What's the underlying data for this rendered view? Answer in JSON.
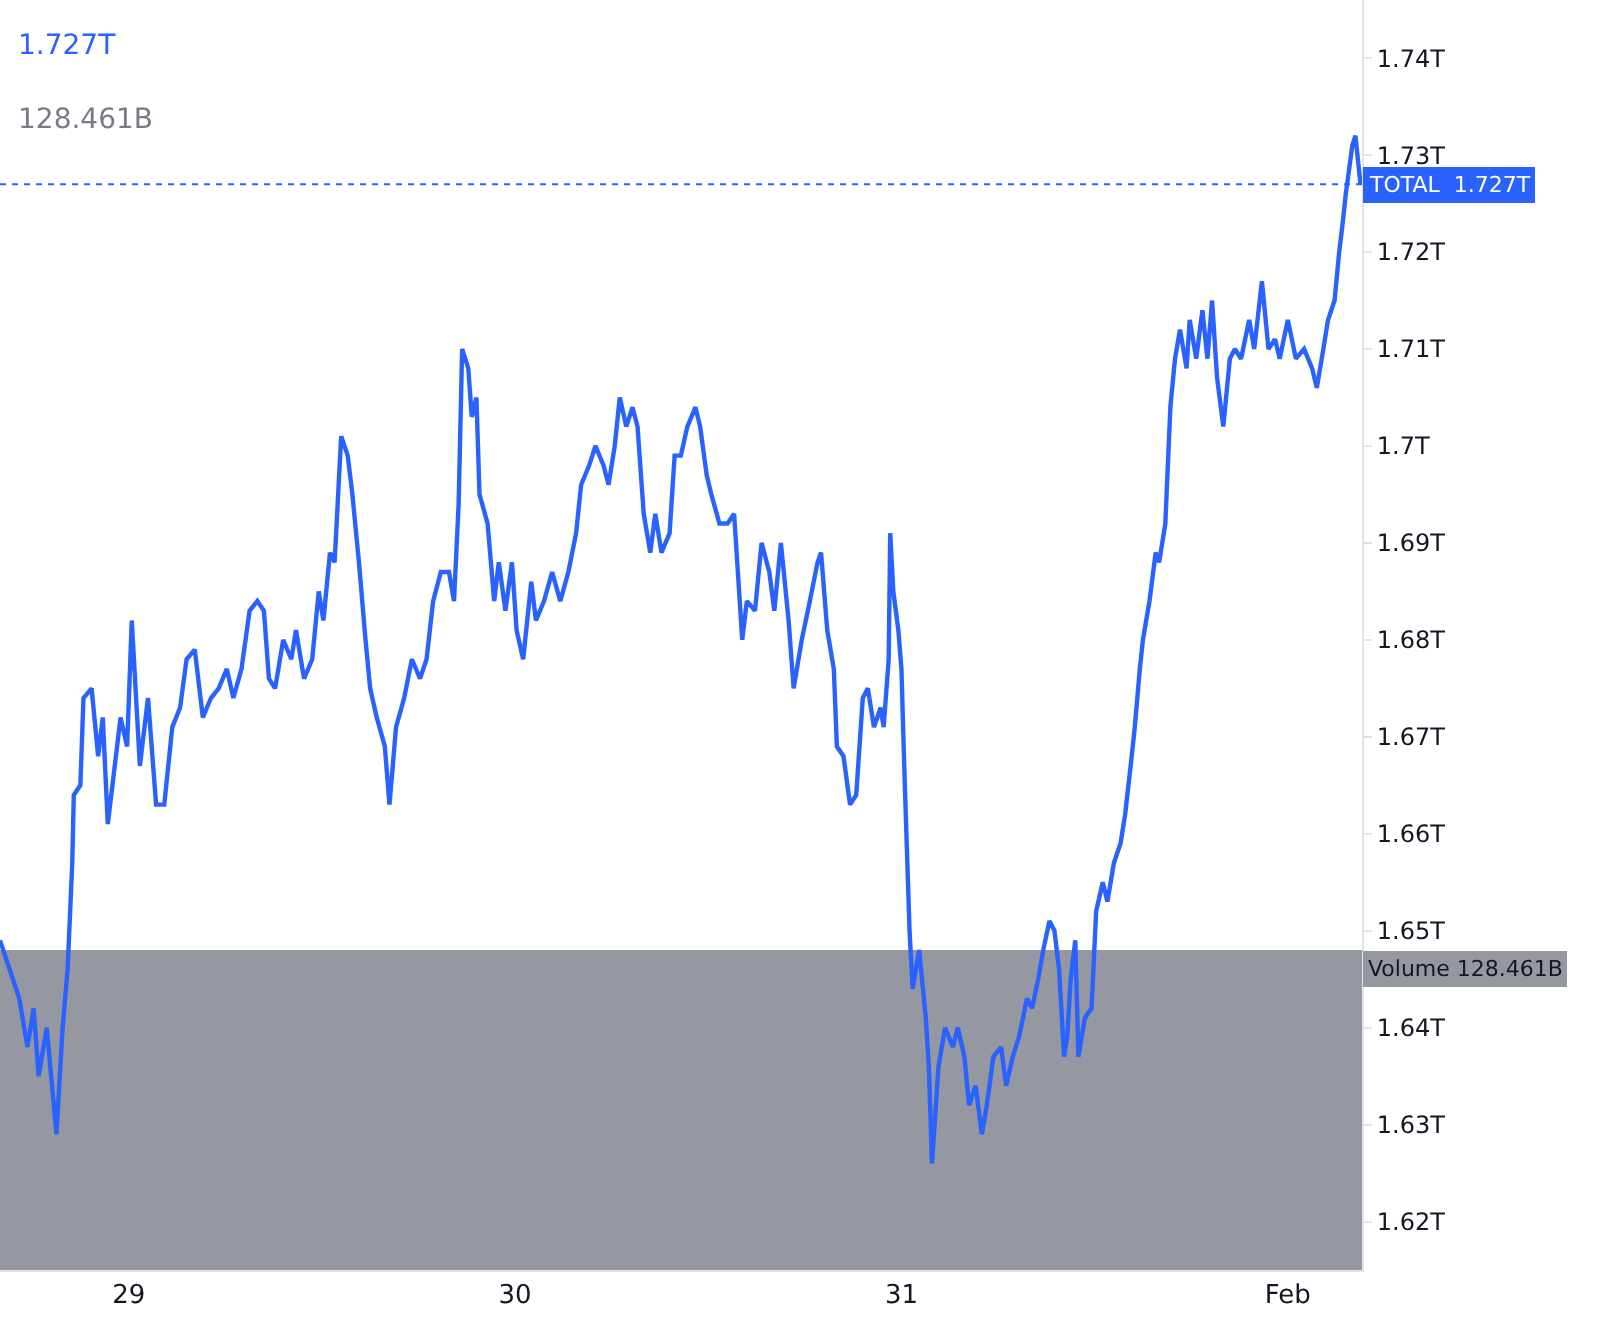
{
  "chart_data": {
    "type": "line",
    "x": [
      28.667,
      28.692,
      28.717,
      28.738,
      28.754,
      28.767,
      28.788,
      28.813,
      28.829,
      28.842,
      28.854,
      28.858,
      28.875,
      28.883,
      28.904,
      28.921,
      28.933,
      28.946,
      28.958,
      28.979,
      28.996,
      29.008,
      29.029,
      29.05,
      29.071,
      29.092,
      29.113,
      29.133,
      29.15,
      29.171,
      29.192,
      29.213,
      29.233,
      29.254,
      29.271,
      29.292,
      29.313,
      29.333,
      29.35,
      29.363,
      29.379,
      29.4,
      29.421,
      29.433,
      29.454,
      29.475,
      29.492,
      29.504,
      29.521,
      29.533,
      29.55,
      29.567,
      29.579,
      29.596,
      29.613,
      29.625,
      29.642,
      29.663,
      29.675,
      29.692,
      29.713,
      29.733,
      29.754,
      29.771,
      29.788,
      29.808,
      29.829,
      29.842,
      29.854,
      29.863,
      29.879,
      29.888,
      29.9,
      29.908,
      29.929,
      29.946,
      29.958,
      29.975,
      29.992,
      30.004,
      30.021,
      30.042,
      30.054,
      30.075,
      30.096,
      30.117,
      30.138,
      30.158,
      30.171,
      30.192,
      30.208,
      30.229,
      30.242,
      30.258,
      30.271,
      30.288,
      30.304,
      30.317,
      30.333,
      30.35,
      30.363,
      30.379,
      30.4,
      30.413,
      30.429,
      30.446,
      30.467,
      30.479,
      30.496,
      30.508,
      30.529,
      30.55,
      30.567,
      30.588,
      30.6,
      30.621,
      30.638,
      30.658,
      30.671,
      30.688,
      30.708,
      30.721,
      30.742,
      30.763,
      30.783,
      30.792,
      30.808,
      30.825,
      30.833,
      30.85,
      30.867,
      30.883,
      30.9,
      30.913,
      30.929,
      30.946,
      30.954,
      30.967,
      30.971,
      30.979,
      30.992,
      31.0,
      31.008,
      31.021,
      31.029,
      31.046,
      31.063,
      31.071,
      31.079,
      31.096,
      31.113,
      31.133,
      31.146,
      31.163,
      31.175,
      31.192,
      31.208,
      31.221,
      31.238,
      31.258,
      31.271,
      31.288,
      31.304,
      31.325,
      31.338,
      31.354,
      31.367,
      31.383,
      31.396,
      31.408,
      31.421,
      31.429,
      31.438,
      31.45,
      31.458,
      31.475,
      31.492,
      31.504,
      31.521,
      31.533,
      31.55,
      31.567,
      31.579,
      31.596,
      31.604,
      31.617,
      31.625,
      31.642,
      31.658,
      31.667,
      31.683,
      31.696,
      31.708,
      31.721,
      31.738,
      31.746,
      31.763,
      31.779,
      31.792,
      31.804,
      31.817,
      31.833,
      31.85,
      31.863,
      31.879,
      31.9,
      31.913,
      31.933,
      31.95,
      31.967,
      31.979,
      32.0,
      32.021,
      32.042,
      32.063,
      32.075,
      32.092,
      32.104,
      32.121,
      32.133,
      32.142,
      32.15,
      32.167,
      32.175,
      32.188
    ],
    "series": [
      {
        "color": "#2962ff",
        "values": [
          1.649,
          1.646,
          1.643,
          1.638,
          1.642,
          1.635,
          1.64,
          1.629,
          1.64,
          1.646,
          1.657,
          1.664,
          1.665,
          1.674,
          1.675,
          1.668,
          1.672,
          1.661,
          1.665,
          1.672,
          1.669,
          1.682,
          1.667,
          1.674,
          1.663,
          1.663,
          1.671,
          1.673,
          1.678,
          1.679,
          1.672,
          1.674,
          1.675,
          1.677,
          1.674,
          1.677,
          1.683,
          1.684,
          1.683,
          1.676,
          1.675,
          1.68,
          1.678,
          1.681,
          1.676,
          1.678,
          1.685,
          1.682,
          1.689,
          1.688,
          1.701,
          1.699,
          1.695,
          1.688,
          1.68,
          1.675,
          1.672,
          1.669,
          1.663,
          1.671,
          1.674,
          1.678,
          1.676,
          1.678,
          1.684,
          1.687,
          1.687,
          1.684,
          1.694,
          1.71,
          1.708,
          1.703,
          1.705,
          1.695,
          1.692,
          1.684,
          1.688,
          1.683,
          1.688,
          1.681,
          1.678,
          1.686,
          1.682,
          1.684,
          1.687,
          1.684,
          1.687,
          1.691,
          1.696,
          1.698,
          1.7,
          1.698,
          1.696,
          1.7,
          1.705,
          1.702,
          1.704,
          1.702,
          1.693,
          1.689,
          1.693,
          1.689,
          1.691,
          1.699,
          1.699,
          1.702,
          1.704,
          1.702,
          1.697,
          1.695,
          1.692,
          1.692,
          1.693,
          1.68,
          1.684,
          1.683,
          1.69,
          1.687,
          1.683,
          1.69,
          1.682,
          1.675,
          1.68,
          1.684,
          1.688,
          1.689,
          1.681,
          1.677,
          1.669,
          1.668,
          1.663,
          1.664,
          1.674,
          1.675,
          1.671,
          1.673,
          1.671,
          1.678,
          1.691,
          1.685,
          1.681,
          1.677,
          1.666,
          1.65,
          1.644,
          1.648,
          1.641,
          1.636,
          1.626,
          1.636,
          1.64,
          1.638,
          1.64,
          1.637,
          1.632,
          1.634,
          1.629,
          1.632,
          1.637,
          1.638,
          1.634,
          1.637,
          1.639,
          1.643,
          1.642,
          1.645,
          1.648,
          1.651,
          1.65,
          1.646,
          1.637,
          1.639,
          1.645,
          1.649,
          1.637,
          1.641,
          1.642,
          1.652,
          1.655,
          1.653,
          1.657,
          1.659,
          1.662,
          1.668,
          1.671,
          1.677,
          1.68,
          1.684,
          1.689,
          1.688,
          1.692,
          1.704,
          1.709,
          1.712,
          1.708,
          1.713,
          1.709,
          1.714,
          1.709,
          1.715,
          1.707,
          1.702,
          1.709,
          1.71,
          1.709,
          1.713,
          1.71,
          1.717,
          1.71,
          1.711,
          1.709,
          1.713,
          1.709,
          1.71,
          1.708,
          1.706,
          1.71,
          1.713,
          1.715,
          1.72,
          1.723,
          1.726,
          1.731,
          1.732,
          1.727
        ]
      }
    ],
    "xlim": [
      28.667,
      32.192
    ],
    "xticks": [
      29,
      30,
      31,
      {
        "value": 32,
        "label": "Feb"
      }
    ],
    "ylim": [
      1.615,
      1.746
    ],
    "yticks": [
      {
        "value": 1.62,
        "label": "1.62T"
      },
      {
        "value": 1.63,
        "label": "1.63T"
      },
      {
        "value": 1.64,
        "label": "1.64T"
      },
      {
        "value": 1.65,
        "label": "1.65T"
      },
      {
        "value": 1.66,
        "label": "1.66T"
      },
      {
        "value": 1.67,
        "label": "1.67T"
      },
      {
        "value": 1.68,
        "label": "1.68T"
      },
      {
        "value": 1.69,
        "label": "1.69T"
      },
      {
        "value": 1.7,
        "label": "1.7T"
      },
      {
        "value": 1.71,
        "label": "1.71T"
      },
      {
        "value": 1.72,
        "label": "1.72T"
      },
      {
        "value": 1.73,
        "label": "1.73T"
      },
      {
        "value": 1.74,
        "label": "1.74T"
      }
    ],
    "ref_lines": [
      {
        "axis": "y",
        "value": 1.727,
        "label": "TOTAL  1.727T",
        "color": "#2962ff",
        "line_style": "dotted"
      }
    ],
    "bands": [
      {
        "axis": "y",
        "from": 1.615,
        "to": 1.648,
        "label": "Volume 128.461B",
        "color": "#9598a1"
      }
    ],
    "annotations": [
      "1.727T",
      "128.461B"
    ],
    "grid": false
  }
}
